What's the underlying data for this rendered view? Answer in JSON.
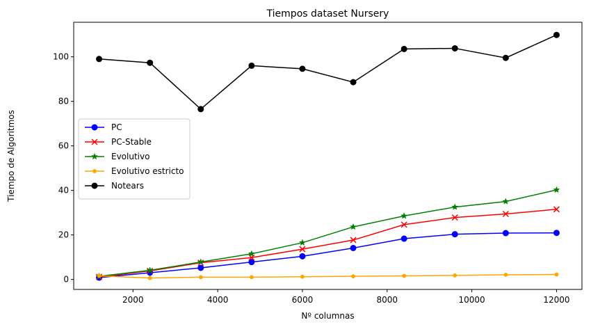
{
  "chart_data": {
    "type": "line",
    "title": "Tiempos dataset Nursery",
    "xlabel": "Nº columnas",
    "ylabel": "Tiempo de Algoritmos",
    "xlim": [
      600,
      12600
    ],
    "ylim": [
      -4.5,
      115.5
    ],
    "xticks": [
      2000,
      4000,
      6000,
      8000,
      10000,
      12000
    ],
    "yticks": [
      0,
      20,
      40,
      60,
      80,
      100
    ],
    "legend_position": "center-left",
    "x": [
      1200,
      2400,
      3600,
      4800,
      6000,
      7200,
      8400,
      9600,
      10800,
      12000
    ],
    "series": [
      {
        "name": "PC",
        "color": "#0000ff",
        "marker": "circle",
        "values": [
          0.8,
          3.0,
          5.2,
          7.8,
          10.4,
          14.1,
          18.3,
          20.3,
          20.8,
          20.9
        ]
      },
      {
        "name": "PC-Stable",
        "color": "#ff0000",
        "marker": "x",
        "values": [
          1.1,
          3.8,
          7.5,
          9.8,
          13.6,
          17.7,
          24.6,
          27.8,
          29.4,
          31.5
        ]
      },
      {
        "name": "Evolutivo",
        "color": "#008000",
        "marker": "star",
        "values": [
          1.4,
          4.1,
          7.8,
          11.5,
          16.5,
          23.6,
          28.5,
          32.5,
          35.0,
          40.2
        ]
      },
      {
        "name": "Evolutivo estricto",
        "color": "#ffa500",
        "marker": "point",
        "values": [
          1.6,
          0.6,
          1.0,
          1.0,
          1.2,
          1.4,
          1.6,
          1.8,
          2.1,
          2.2
        ]
      },
      {
        "name": "Notears",
        "color": "#000000",
        "marker": "circle",
        "values": [
          99.0,
          97.3,
          76.5,
          96.0,
          94.6,
          88.6,
          103.5,
          103.8,
          99.5,
          109.8
        ]
      }
    ]
  }
}
